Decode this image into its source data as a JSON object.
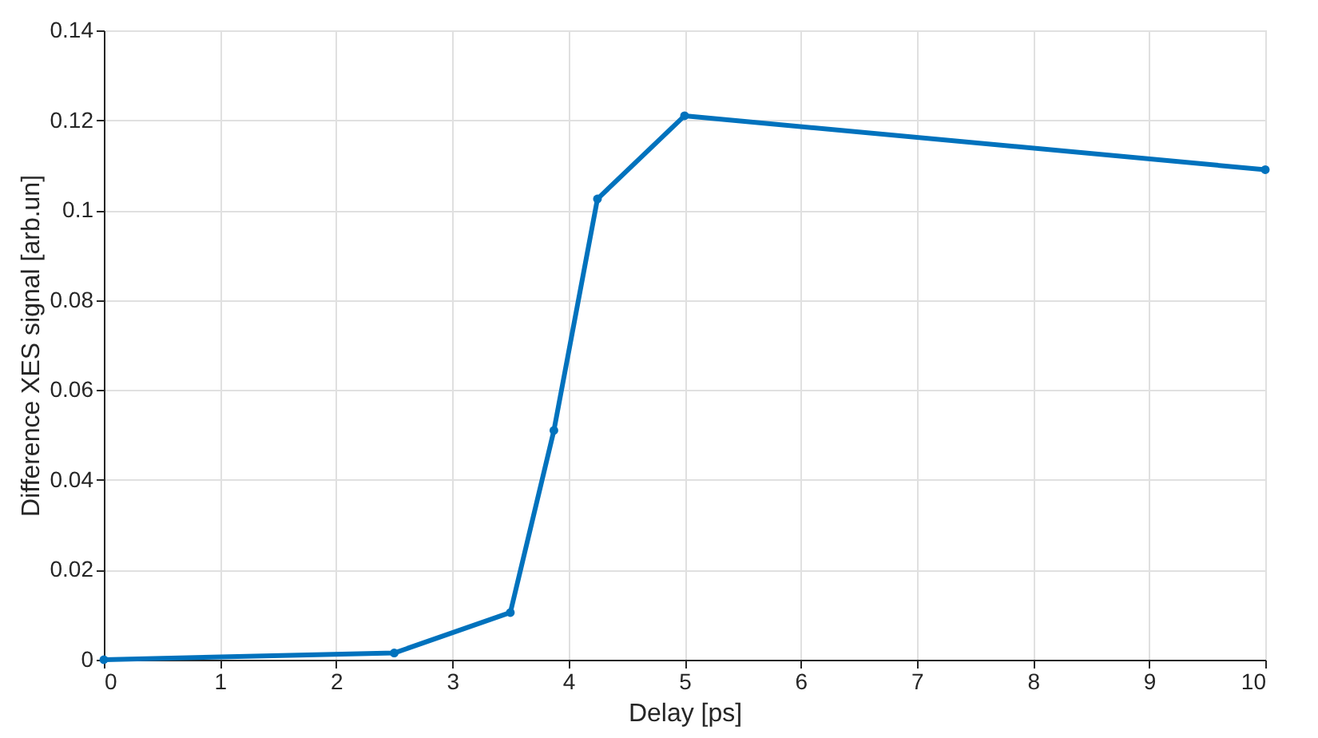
{
  "chart_data": {
    "type": "line",
    "xlabel": "Delay [ps]",
    "ylabel": "Difference XES signal [arb.un]",
    "x": [
      0,
      2.5,
      3.5,
      3.875,
      4.25,
      5,
      10
    ],
    "series": [
      {
        "color": "#0072bd",
        "values": [
          0,
          0.0015,
          0.0105,
          0.051,
          0.1025,
          0.121,
          0.109
        ]
      }
    ],
    "xlim": [
      0,
      10
    ],
    "xticks": [
      0,
      1,
      2,
      3,
      4,
      5,
      6,
      7,
      8,
      9,
      10
    ],
    "ylim": [
      0,
      0.14
    ],
    "yticks": [
      0,
      0.02,
      0.04,
      0.06,
      0.08,
      0.1,
      0.12,
      0.14
    ],
    "grid": true,
    "marker": "circle",
    "line_style": "solid"
  }
}
